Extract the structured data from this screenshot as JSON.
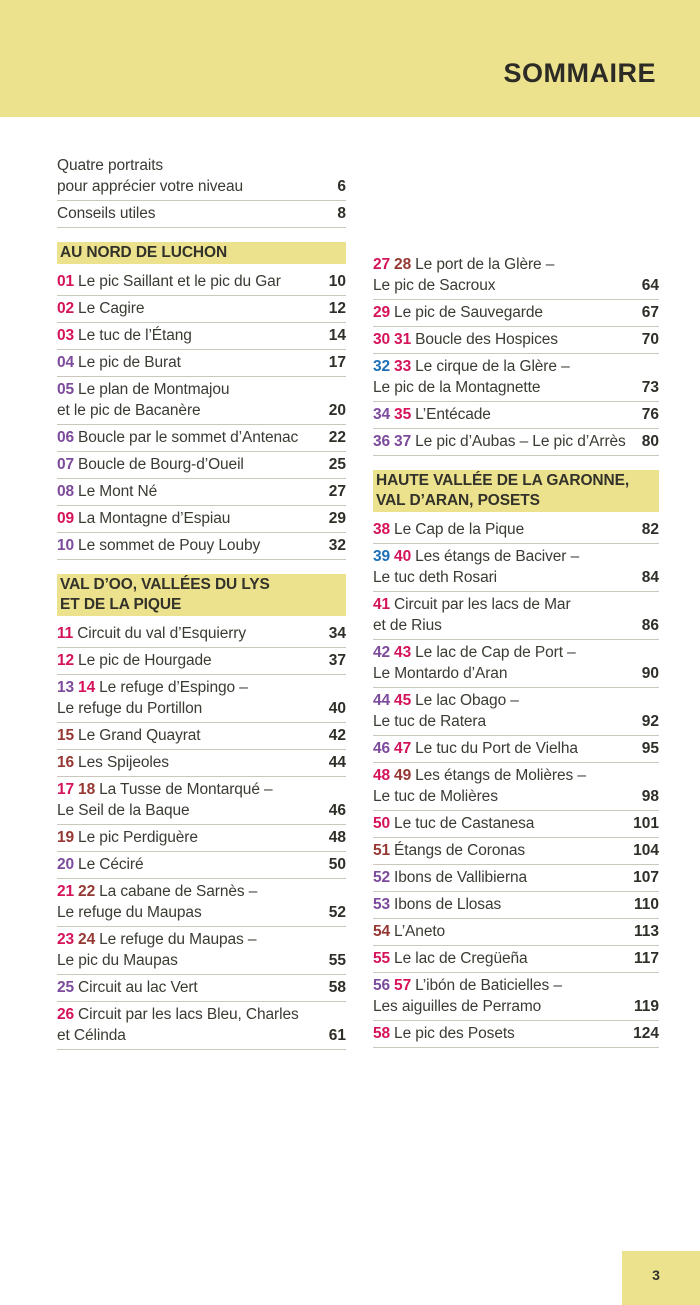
{
  "header": {
    "title": "SOMMAIRE"
  },
  "footer": {
    "page_number": "3"
  },
  "colors": {
    "band_yellow": "#ECE28D",
    "crimson": "#D5135A",
    "purple": "#7C4B9B",
    "maroon": "#953732",
    "blue": "#1C70B8",
    "text": "#3B3A33"
  },
  "columns": [
    {
      "name": "left",
      "blocks": [
        {
          "nums": [],
          "title": "Quatre portraits\npour apprécier votre niveau",
          "page": "6"
        },
        {
          "nums": [],
          "title": "Conseils utiles",
          "page": "8"
        },
        {
          "heading": "AU NORD DE LUCHON"
        },
        {
          "nums": [
            [
              "01",
              "crimson"
            ]
          ],
          "title": "Le pic Saillant et le pic du Gar",
          "page": "10"
        },
        {
          "nums": [
            [
              "02",
              "crimson"
            ]
          ],
          "title": "Le Cagire",
          "page": "12"
        },
        {
          "nums": [
            [
              "03",
              "crimson"
            ]
          ],
          "title": "Le tuc de l’Étang",
          "page": "14"
        },
        {
          "nums": [
            [
              "04",
              "purple"
            ]
          ],
          "title": "Le pic de Burat",
          "page": "17"
        },
        {
          "nums": [
            [
              "05",
              "purple"
            ]
          ],
          "title": "Le plan de Montmajou\net le pic de Bacanère",
          "page": "20"
        },
        {
          "nums": [
            [
              "06",
              "purple"
            ]
          ],
          "title": "Boucle par le sommet d’Antenac",
          "page": "22"
        },
        {
          "nums": [
            [
              "07",
              "purple"
            ]
          ],
          "title": "Boucle de Bourg-d’Oueil",
          "page": "25"
        },
        {
          "nums": [
            [
              "08",
              "purple"
            ]
          ],
          "title": "Le Mont Né",
          "page": "27"
        },
        {
          "nums": [
            [
              "09",
              "crimson"
            ]
          ],
          "title": "La Montagne d’Espiau",
          "page": "29"
        },
        {
          "nums": [
            [
              "10",
              "purple"
            ]
          ],
          "title": "Le sommet de Pouy Louby",
          "page": "32"
        },
        {
          "heading": "VAL D’OO, VALLÉES DU LYS\nET DE LA PIQUE"
        },
        {
          "nums": [
            [
              "11",
              "crimson"
            ]
          ],
          "title": "Circuit du val d’Esquierry",
          "page": "34"
        },
        {
          "nums": [
            [
              "12",
              "crimson"
            ]
          ],
          "title": "Le pic de Hourgade",
          "page": "37"
        },
        {
          "nums": [
            [
              "13",
              "purple"
            ],
            [
              "14",
              "crimson"
            ]
          ],
          "title": "Le refuge d’Espingo –\nLe refuge du Portillon",
          "page": "40"
        },
        {
          "nums": [
            [
              "15",
              "maroon"
            ]
          ],
          "title": "Le Grand Quayrat",
          "page": "42"
        },
        {
          "nums": [
            [
              "16",
              "maroon"
            ]
          ],
          "title": "Les Spijeoles",
          "page": "44"
        },
        {
          "nums": [
            [
              "17",
              "crimson"
            ],
            [
              "18",
              "maroon"
            ]
          ],
          "title": "La Tusse de Montarqué –\nLe Seil de la Baque",
          "page": "46"
        },
        {
          "nums": [
            [
              "19",
              "maroon"
            ]
          ],
          "title": "Le pic Perdiguère",
          "page": "48"
        },
        {
          "nums": [
            [
              "20",
              "purple"
            ]
          ],
          "title": "Le Céciré",
          "page": "50"
        },
        {
          "nums": [
            [
              "21",
              "crimson"
            ],
            [
              "22",
              "maroon"
            ]
          ],
          "title": "La cabane de Sarnès –\nLe refuge du Maupas",
          "page": "52"
        },
        {
          "nums": [
            [
              "23",
              "crimson"
            ],
            [
              "24",
              "maroon"
            ]
          ],
          "title": "Le refuge du Maupas –\nLe pic du Maupas",
          "page": "55"
        },
        {
          "nums": [
            [
              "25",
              "purple"
            ]
          ],
          "title": "Circuit au lac Vert",
          "page": "58"
        },
        {
          "nums": [
            [
              "26",
              "crimson"
            ]
          ],
          "title": "Circuit par les lacs Bleu, Charles\net Célinda",
          "page": "61"
        }
      ]
    },
    {
      "name": "right",
      "blocks": [
        {
          "nums": [
            [
              "27",
              "crimson"
            ],
            [
              "28",
              "maroon"
            ]
          ],
          "title": "Le port de la Glère –\nLe pic de Sacroux",
          "page": "64"
        },
        {
          "nums": [
            [
              "29",
              "crimson"
            ]
          ],
          "title": "Le pic de Sauvegarde",
          "page": "67"
        },
        {
          "nums": [
            [
              "30",
              "crimson"
            ],
            [
              "31",
              "crimson"
            ]
          ],
          "title": "Boucle des Hospices",
          "page": "70"
        },
        {
          "nums": [
            [
              "32",
              "blue"
            ],
            [
              "33",
              "crimson"
            ]
          ],
          "title": "Le cirque de la Glère –\nLe pic de la Montagnette",
          "page": "73"
        },
        {
          "nums": [
            [
              "34",
              "purple"
            ],
            [
              "35",
              "crimson"
            ]
          ],
          "title": "L’Entécade",
          "page": "76"
        },
        {
          "nums": [
            [
              "36",
              "purple"
            ],
            [
              "37",
              "purple"
            ]
          ],
          "title": "Le pic d’Aubas – Le pic d’Arrès",
          "page": "80"
        },
        {
          "heading": "HAUTE VALLÉE DE LA GARONNE,\nVAL D’ARAN, POSETS"
        },
        {
          "nums": [
            [
              "38",
              "crimson"
            ]
          ],
          "title": "Le Cap de la Pique",
          "page": "82"
        },
        {
          "nums": [
            [
              "39",
              "blue"
            ],
            [
              "40",
              "crimson"
            ]
          ],
          "title": "Les étangs de Baciver –\nLe tuc deth Rosari",
          "page": "84"
        },
        {
          "nums": [
            [
              "41",
              "crimson"
            ]
          ],
          "title": "Circuit par les lacs de Mar\net de Rius",
          "page": "86"
        },
        {
          "nums": [
            [
              "42",
              "purple"
            ],
            [
              "43",
              "crimson"
            ]
          ],
          "title": "Le lac de Cap de Port –\nLe Montardo d’Aran",
          "page": "90"
        },
        {
          "nums": [
            [
              "44",
              "purple"
            ],
            [
              "45",
              "crimson"
            ]
          ],
          "title": "Le lac Obago –\nLe tuc de Ratera",
          "page": "92"
        },
        {
          "nums": [
            [
              "46",
              "purple"
            ],
            [
              "47",
              "crimson"
            ]
          ],
          "title": "Le tuc du Port de Vielha",
          "page": "95"
        },
        {
          "nums": [
            [
              "48",
              "crimson"
            ],
            [
              "49",
              "maroon"
            ]
          ],
          "title": "Les étangs de Molières –\nLe tuc de Molières",
          "page": "98"
        },
        {
          "nums": [
            [
              "50",
              "crimson"
            ]
          ],
          "title": "Le tuc de Castanesa",
          "page": "101"
        },
        {
          "nums": [
            [
              "51",
              "maroon"
            ]
          ],
          "title": "Étangs de Coronas",
          "page": "104"
        },
        {
          "nums": [
            [
              "52",
              "purple"
            ]
          ],
          "title": "Ibons de Vallibierna",
          "page": "107"
        },
        {
          "nums": [
            [
              "53",
              "purple"
            ]
          ],
          "title": "Ibons de Llosas",
          "page": "110"
        },
        {
          "nums": [
            [
              "54",
              "maroon"
            ]
          ],
          "title": "L’Aneto",
          "page": "113"
        },
        {
          "nums": [
            [
              "55",
              "crimson"
            ]
          ],
          "title": "Le lac de Cregüeña",
          "page": "117"
        },
        {
          "nums": [
            [
              "56",
              "purple"
            ],
            [
              "57",
              "crimson"
            ]
          ],
          "title": "L’ibón de Baticielles –\nLes aiguilles de Perramo",
          "page": "119"
        },
        {
          "nums": [
            [
              "58",
              "crimson"
            ]
          ],
          "title": "Le pic des Posets",
          "page": "124"
        }
      ]
    }
  ]
}
